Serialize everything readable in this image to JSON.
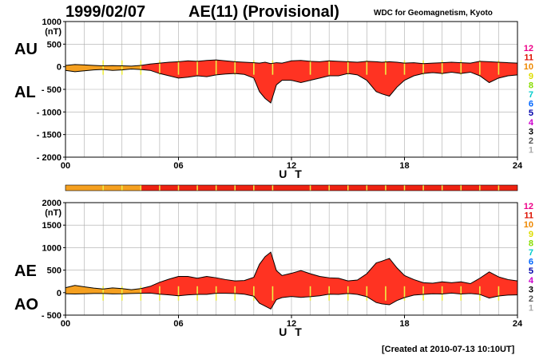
{
  "header": {
    "date": "1999/02/07",
    "title": "AE(11) (Provisional)",
    "source": "WDC for Geomagnetism, Kyoto"
  },
  "footer": {
    "created": "[Created at 2010-07-13 10:10UT]"
  },
  "legend": {
    "items": [
      {
        "label": "12",
        "color": "#ee0088"
      },
      {
        "label": "11",
        "color": "#dd1100"
      },
      {
        "label": "10",
        "color": "#ee8800"
      },
      {
        "label": "9",
        "color": "#dddd00"
      },
      {
        "label": "8",
        "color": "#88dd00"
      },
      {
        "label": "7",
        "color": "#00cccc"
      },
      {
        "label": "6",
        "color": "#0066ff"
      },
      {
        "label": "5",
        "color": "#0000aa"
      },
      {
        "label": "4",
        "color": "#cc00cc"
      },
      {
        "label": "3",
        "color": "#000000"
      },
      {
        "label": "2",
        "color": "#555555"
      },
      {
        "label": "1",
        "color": "#aaaaaa"
      }
    ]
  },
  "colors": {
    "fill_main": "#ff3322",
    "fill_early": "#f5a020",
    "bar_early": "#f5a020",
    "bar_main": "#ee2211",
    "station_marks": "#eeee44",
    "grid": "#aaaaaa"
  },
  "chart_data": [
    {
      "type": "area",
      "name": "AU/AL",
      "y_labels": [
        "AU",
        "AL"
      ],
      "unit": "(nT)",
      "ylim": [
        -2000,
        1000
      ],
      "yticks": [
        1000,
        500,
        0,
        -500,
        -1000,
        -1500,
        -2000
      ],
      "ytick_labels": [
        "1000",
        "500",
        "0",
        "- 500",
        "- 1000",
        "- 1500",
        "- 2000"
      ],
      "xlim": [
        0,
        24
      ],
      "xticks": [
        0,
        6,
        12,
        18,
        24
      ],
      "xtick_labels": [
        "00",
        "06",
        "12",
        "18",
        "24"
      ],
      "xlabel": "U T",
      "grid": true,
      "x": [
        0,
        0.5,
        1,
        1.5,
        2,
        2.5,
        3,
        3.5,
        4,
        4.5,
        5,
        5.5,
        6,
        6.5,
        7,
        7.5,
        8,
        8.5,
        9,
        9.5,
        10,
        10.3,
        10.6,
        10.9,
        11.2,
        11.5,
        12,
        12.5,
        13,
        13.5,
        14,
        14.5,
        15,
        15.5,
        16,
        16.5,
        16.8,
        17.2,
        17.6,
        18,
        18.5,
        19,
        19.5,
        20,
        20.5,
        21,
        21.5,
        22,
        22.5,
        23,
        23.5,
        24
      ],
      "series": [
        {
          "name": "AU",
          "values": [
            30,
            50,
            40,
            30,
            20,
            25,
            20,
            15,
            30,
            60,
            80,
            100,
            110,
            130,
            120,
            140,
            150,
            130,
            110,
            100,
            90,
            80,
            100,
            70,
            90,
            80,
            130,
            140,
            120,
            110,
            130,
            120,
            110,
            100,
            120,
            110,
            100,
            110,
            100,
            80,
            90,
            70,
            80,
            90,
            100,
            90,
            80,
            120,
            110,
            100,
            90,
            80
          ]
        },
        {
          "name": "AL",
          "values": [
            -80,
            -110,
            -90,
            -70,
            -60,
            -80,
            -70,
            -50,
            -60,
            -80,
            -150,
            -200,
            -250,
            -230,
            -200,
            -220,
            -180,
            -160,
            -150,
            -170,
            -250,
            -550,
            -700,
            -800,
            -400,
            -300,
            -300,
            -350,
            -300,
            -250,
            -200,
            -200,
            -150,
            -180,
            -300,
            -550,
            -600,
            -650,
            -450,
            -300,
            -200,
            -150,
            -130,
            -150,
            -120,
            -150,
            -120,
            -200,
            -350,
            -250,
            -200,
            -180
          ]
        }
      ]
    },
    {
      "type": "area",
      "name": "AE/AO",
      "y_labels": [
        "AE",
        "AO"
      ],
      "unit": "(nT)",
      "ylim": [
        -500,
        2000
      ],
      "yticks": [
        2000,
        1500,
        1000,
        500,
        0,
        -500
      ],
      "ytick_labels": [
        "2000",
        "1500",
        "1000",
        "500",
        "0",
        "- 500"
      ],
      "xlim": [
        0,
        24
      ],
      "xticks": [
        0,
        6,
        12,
        18,
        24
      ],
      "xtick_labels": [
        "00",
        "06",
        "12",
        "18",
        "24"
      ],
      "xlabel": "U T",
      "grid": true,
      "x": [
        0,
        0.5,
        1,
        1.5,
        2,
        2.5,
        3,
        3.5,
        4,
        4.5,
        5,
        5.5,
        6,
        6.5,
        7,
        7.5,
        8,
        8.5,
        9,
        9.5,
        10,
        10.3,
        10.6,
        10.9,
        11.2,
        11.5,
        12,
        12.5,
        13,
        13.5,
        14,
        14.5,
        15,
        15.5,
        16,
        16.5,
        16.8,
        17.2,
        17.6,
        18,
        18.5,
        19,
        19.5,
        20,
        20.5,
        21,
        21.5,
        22,
        22.5,
        23,
        23.5,
        24
      ],
      "series": [
        {
          "name": "AE",
          "values": [
            110,
            160,
            130,
            100,
            80,
            105,
            90,
            65,
            90,
            140,
            230,
            300,
            360,
            360,
            320,
            360,
            330,
            290,
            260,
            270,
            340,
            630,
            800,
            900,
            490,
            380,
            430,
            490,
            420,
            360,
            330,
            320,
            260,
            280,
            420,
            660,
            700,
            760,
            550,
            380,
            290,
            220,
            210,
            240,
            220,
            240,
            200,
            320,
            460,
            350,
            290,
            260
          ]
        },
        {
          "name": "AO",
          "values": [
            -25,
            -30,
            -25,
            -20,
            -20,
            -27,
            -25,
            -18,
            -15,
            -10,
            -35,
            -50,
            -70,
            -50,
            -40,
            -40,
            -15,
            -15,
            -20,
            -35,
            -80,
            -235,
            -300,
            -365,
            -155,
            -110,
            -85,
            -105,
            -90,
            -70,
            -35,
            -40,
            -20,
            -40,
            -90,
            -220,
            -250,
            -270,
            -175,
            -110,
            -55,
            -40,
            -25,
            -30,
            -10,
            -30,
            -20,
            -40,
            -120,
            -75,
            -55,
            -50
          ]
        }
      ]
    }
  ],
  "station_bar": {
    "early_until_hour": 4,
    "tick_hours": [
      2,
      3,
      4,
      5,
      6,
      7,
      8,
      9,
      10,
      11,
      13,
      14,
      15,
      16,
      17,
      18,
      19,
      20,
      21,
      22,
      23
    ]
  }
}
